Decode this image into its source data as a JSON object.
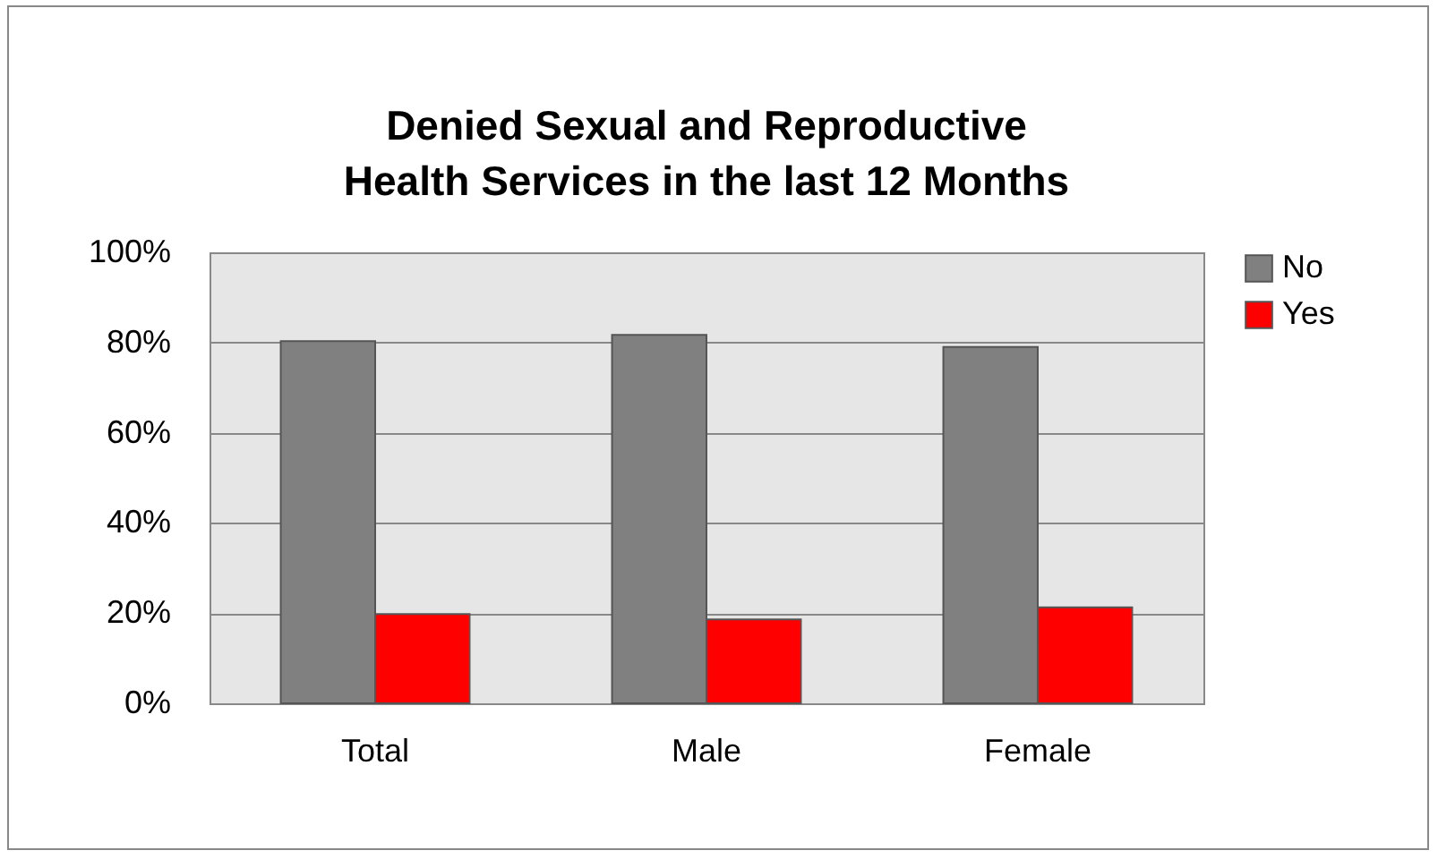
{
  "chart_data": {
    "type": "bar",
    "title": "Denied Sexual and Reproductive Health Services in the last 12 Months",
    "categories": [
      "Total",
      "Male",
      "Female"
    ],
    "series": [
      {
        "name": "No",
        "color": "#808080",
        "values": [
          80.3,
          81.7,
          79.0
        ]
      },
      {
        "name": "Yes",
        "color": "#ff0000",
        "values": [
          19.8,
          18.6,
          21.3
        ]
      }
    ],
    "ylim": [
      0,
      100
    ],
    "yticks": [
      {
        "value": 0,
        "label": "0%"
      },
      {
        "value": 20,
        "label": "20%"
      },
      {
        "value": 40,
        "label": "40%"
      },
      {
        "value": 60,
        "label": "60%"
      },
      {
        "value": 80,
        "label": "80%"
      },
      {
        "value": 100,
        "label": "100%"
      }
    ],
    "grid": "y",
    "legend": "right"
  }
}
